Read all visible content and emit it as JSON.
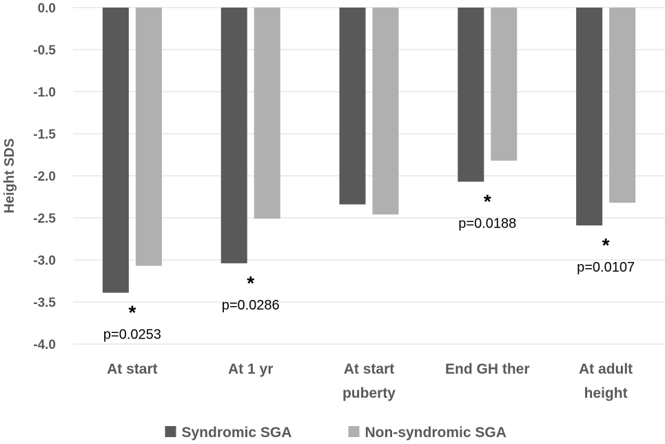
{
  "chart_data": {
    "type": "bar",
    "title": "",
    "xlabel": "",
    "ylabel": "Height SDS",
    "ylim": [
      -4.0,
      0.0
    ],
    "yticks": [
      "0.0",
      "-0.5",
      "-1.0",
      "-1.5",
      "-2.0",
      "-2.5",
      "-3.0",
      "-3.5",
      "-4.0"
    ],
    "categories": [
      [
        "At start"
      ],
      [
        "At 1 yr"
      ],
      [
        "At start",
        "puberty"
      ],
      [
        "End GH ther"
      ],
      [
        "At adult",
        "height"
      ]
    ],
    "series": [
      {
        "name": "Syndromic SGA",
        "color": "#595959",
        "values": [
          -3.39,
          -3.04,
          -2.34,
          -2.07,
          -2.59
        ]
      },
      {
        "name": "Non-syndromic SGA",
        "color": "#b0b0b0",
        "values": [
          -3.07,
          -2.51,
          -2.46,
          -1.82,
          -2.32
        ]
      }
    ],
    "annotations": [
      {
        "category": 0,
        "star": "*",
        "text": "p=0.0253"
      },
      {
        "category": 1,
        "star": "*",
        "text": "p=0.0286"
      },
      {
        "category": 3,
        "star": "*",
        "text": "p=0.0188"
      },
      {
        "category": 4,
        "star": "*",
        "text": "p=0.0107"
      }
    ],
    "grid": true,
    "legend": "bottom"
  }
}
